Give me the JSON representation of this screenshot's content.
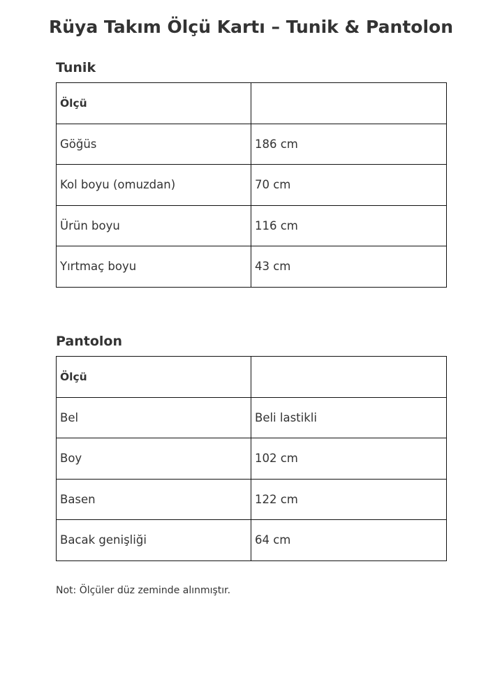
{
  "title": "Rüya Takım Ölçü Kartı – Tunik & Pantolon",
  "sections": [
    {
      "heading": "Tunik",
      "header": [
        "Ölçü",
        ""
      ],
      "rows": [
        [
          "Göğüs",
          "186 cm"
        ],
        [
          "Kol boyu (omuzdan)",
          "70 cm"
        ],
        [
          "Ürün boyu",
          "116 cm"
        ],
        [
          "Yırtmaç boyu",
          "43 cm"
        ]
      ]
    },
    {
      "heading": "Pantolon",
      "header": [
        "Ölçü",
        ""
      ],
      "rows": [
        [
          "Bel",
          "Beli lastikli"
        ],
        [
          "Boy",
          "102 cm"
        ],
        [
          "Basen",
          "122 cm"
        ],
        [
          "Bacak genişliği",
          "64 cm"
        ]
      ]
    }
  ],
  "note": "Not: Ölçüler düz zeminde alınmıştır."
}
